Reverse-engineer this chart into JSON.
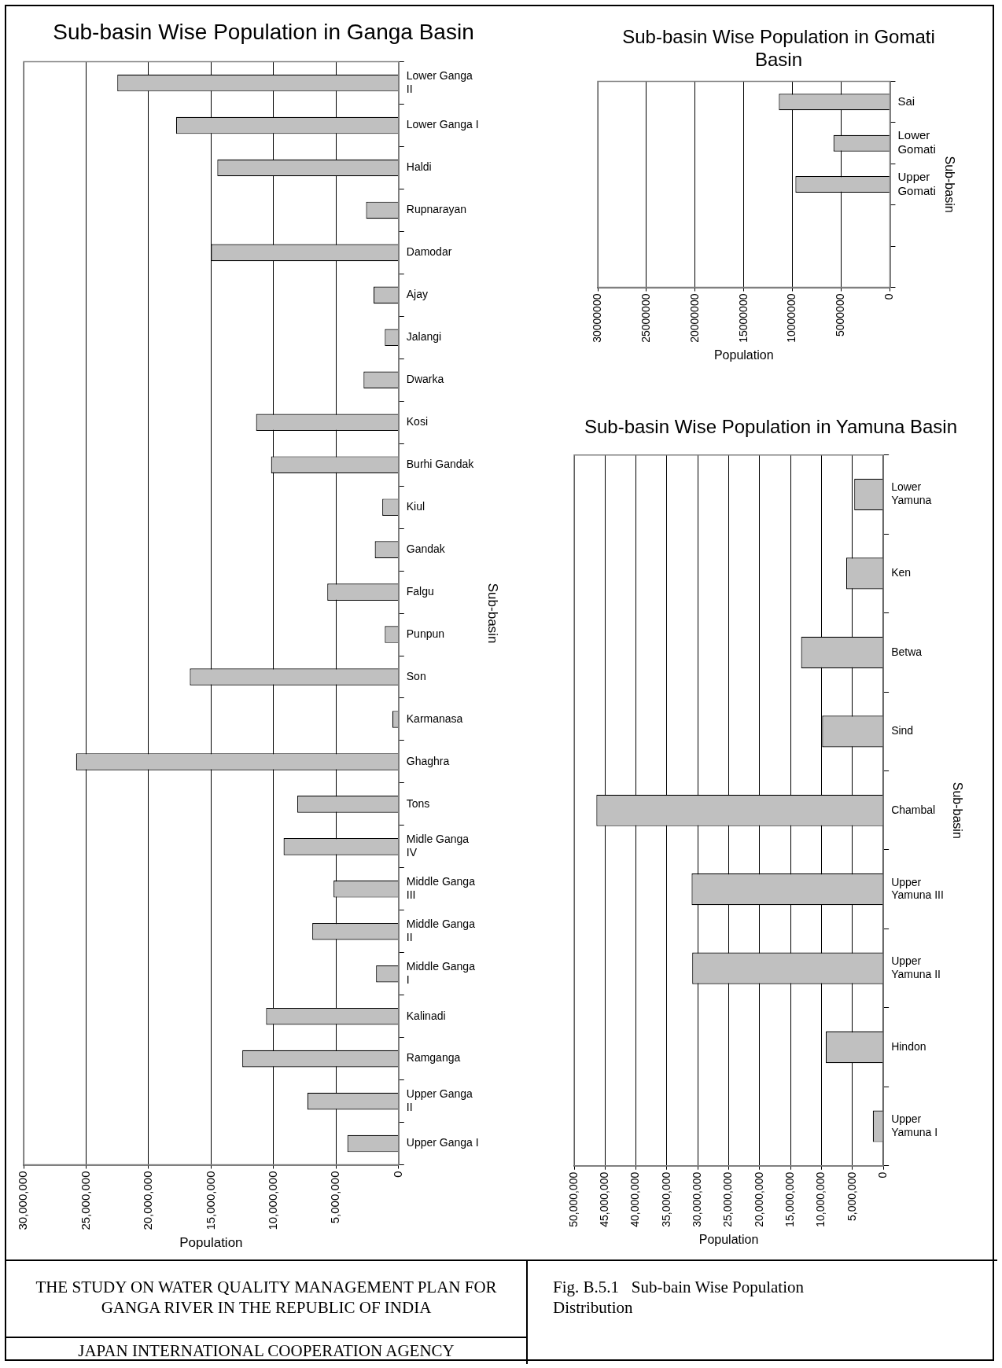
{
  "chart_data": [
    {
      "type": "bar",
      "orientation": "horizontal",
      "title": "Sub-basin Wise Population in Ganga Basin",
      "xlabel": "Population",
      "ylabel": "Sub-basin",
      "color": "#c0c0c0",
      "grid": "x",
      "categories": [
        "Lower Ganga II",
        "Lower Ganga I",
        "Haldi",
        "Rupnarayan",
        "Damodar",
        "Ajay",
        "Jalangi",
        "Dwarka",
        "Kosi",
        "Burhi Gandak",
        "Kiul",
        "Gandak",
        "Falgu",
        "Punpun",
        "Son",
        "Karmanasa",
        "Ghaghra",
        "Tons",
        "Midle Ganga IV",
        "Middle Ganga III",
        "Middle Ganga II",
        "Middle Ganga I",
        "Kalinadi",
        "Ramganga",
        "Upper Ganga II",
        "Upper Ganga I"
      ],
      "values": [
        22500000,
        17800000,
        14500000,
        2600000,
        15000000,
        2000000,
        1100000,
        2800000,
        11400000,
        10200000,
        1300000,
        1900000,
        5700000,
        1100000,
        16700000,
        500000,
        25800000,
        8100000,
        9200000,
        5200000,
        6900000,
        1800000,
        10600000,
        12500000,
        7300000,
        4100000
      ],
      "xlim": [
        30000000,
        0
      ],
      "xticks": [
        0,
        {
          "value": 5000000,
          "label": "5,000,000"
        },
        {
          "value": 10000000,
          "label": "10,000,000"
        },
        {
          "value": 15000000,
          "label": "15,000,000"
        },
        {
          "value": 20000000,
          "label": "20,000,000"
        },
        {
          "value": 25000000,
          "label": "25,000,000"
        },
        {
          "value": 30000000,
          "label": "30,000,000"
        }
      ]
    },
    {
      "type": "bar",
      "orientation": "horizontal",
      "title": "Sub-basin Wise Population in Gomati Basin",
      "xlabel": "Population",
      "ylabel": "Sub-basin",
      "color": "#c0c0c0",
      "grid": "x",
      "categories": [
        "Sai",
        "Lower Gomati",
        "Upper Gomati",
        null,
        null
      ],
      "values": [
        11400000,
        5800000,
        9700000,
        null,
        null
      ],
      "xlim": [
        30000000,
        0
      ],
      "xticks": [
        0,
        5000000,
        10000000,
        15000000,
        20000000,
        25000000,
        30000000
      ]
    },
    {
      "type": "bar",
      "orientation": "horizontal",
      "title": "Sub-basin Wise Population in Yamuna Basin",
      "xlabel": "Population",
      "ylabel": "Sub-basin",
      "color": "#c0c0c0",
      "grid": "x",
      "categories": [
        "Lower Yamuna",
        "Ken",
        "Betwa",
        "Sind",
        "Chambal",
        "Upper Yamuna III",
        "Upper Yamuna II",
        "Hindon",
        "Upper Yamuna I"
      ],
      "values": [
        4700000,
        6000000,
        13300000,
        9900000,
        46400000,
        31000000,
        30900000,
        9300000,
        1700000
      ],
      "xlim": [
        50000000,
        0
      ],
      "xticks": [
        0,
        {
          "value": 5000000,
          "label": "5,000,000"
        },
        {
          "value": 10000000,
          "label": "10,000,000"
        },
        {
          "value": 15000000,
          "label": "15,000,000"
        },
        {
          "value": 20000000,
          "label": "20,000,000"
        },
        {
          "value": 25000000,
          "label": "25,000,000"
        },
        {
          "value": 30000000,
          "label": "30,000,000"
        },
        {
          "value": 35000000,
          "label": "35,000,000"
        },
        {
          "value": 40000000,
          "label": "40,000,000"
        },
        {
          "value": 45000000,
          "label": "45,000,000"
        },
        {
          "value": 50000000,
          "label": "50,000,000"
        }
      ]
    },
    {
      "type": "other",
      "annotations": [
        "THE STUDY ON WATER QUALITY MANAGEMENT PLAN FOR GANGA RIVER IN THE REPUBLIC OF INDIA",
        "JAPAN INTERNATIONAL COOPERATION AGENCY",
        "Fig. B.5.1   Sub-bain Wise Population Distribution"
      ]
    }
  ]
}
